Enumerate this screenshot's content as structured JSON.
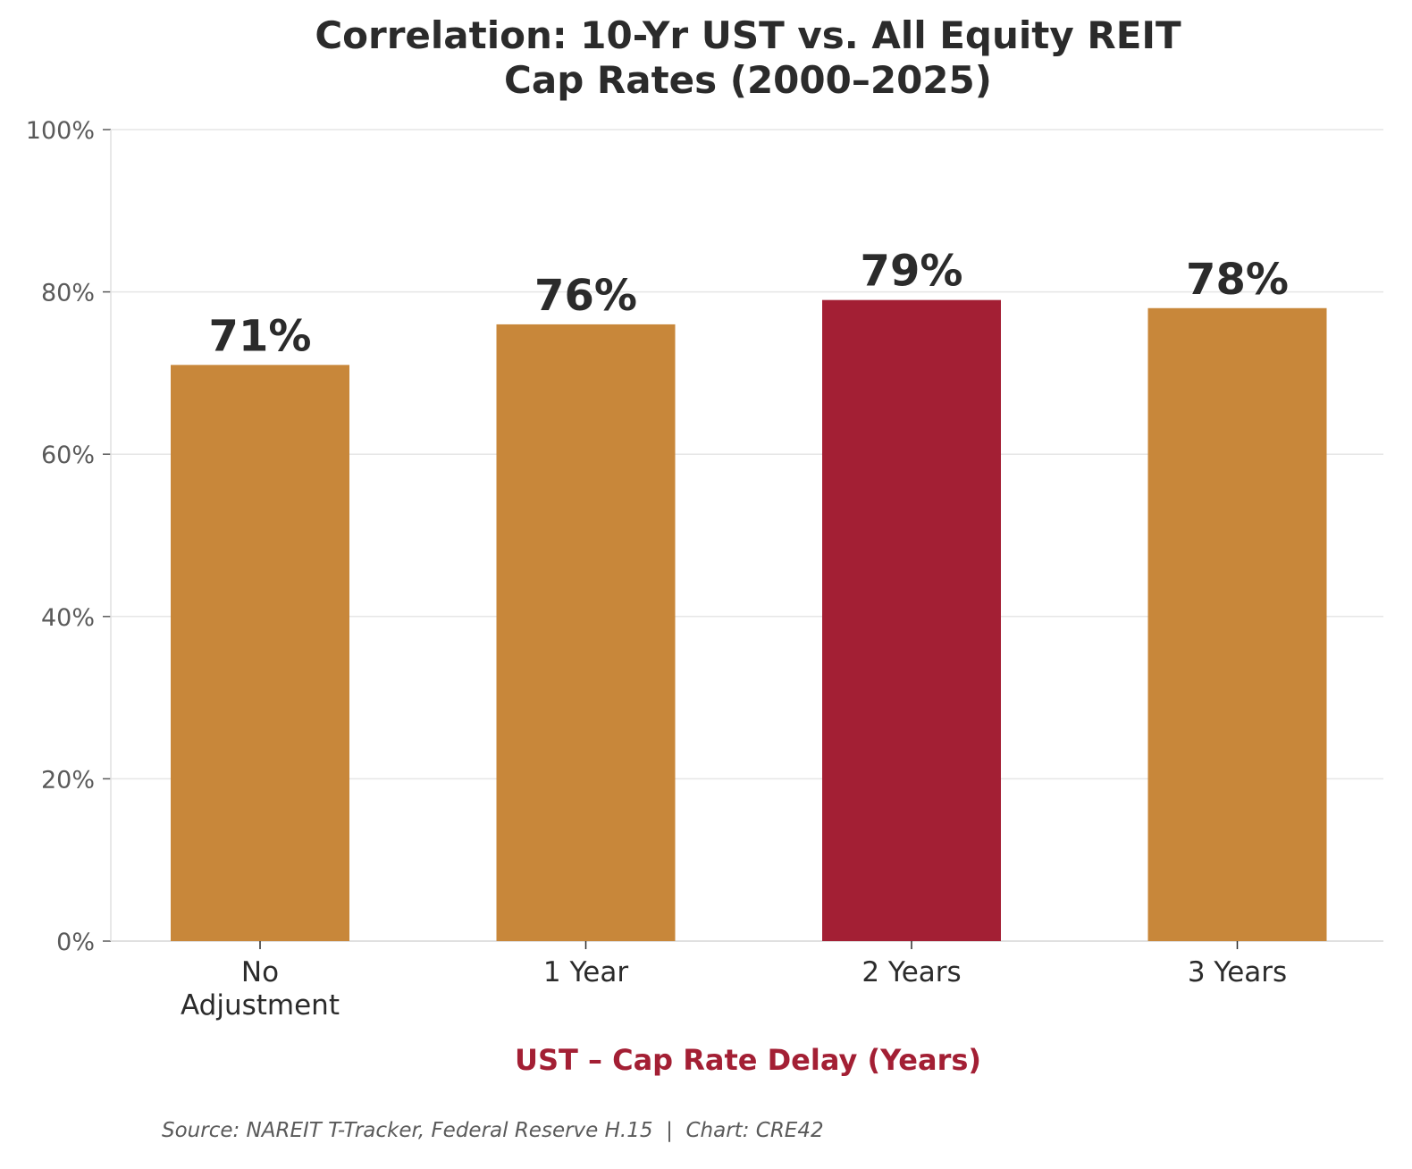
{
  "chart_data": {
    "type": "bar",
    "title_lines": [
      "Correlation: 10-Yr UST vs. All Equity REIT",
      "Cap Rates (2000–2025)"
    ],
    "categories": [
      [
        "No",
        "Adjustment"
      ],
      [
        "1 Year"
      ],
      [
        "2 Years"
      ],
      [
        "3 Years"
      ]
    ],
    "values": [
      71,
      76,
      79,
      78
    ],
    "data_labels": [
      "71%",
      "76%",
      "79%",
      "78%"
    ],
    "highlight_index": 2,
    "xlabel": "UST – Cap Rate Delay (Years)",
    "ylabel": "",
    "ylim": [
      0,
      100
    ],
    "yticks": [
      0,
      20,
      40,
      60,
      80,
      100
    ],
    "ytick_labels": [
      "0%",
      "20%",
      "40%",
      "60%",
      "80%",
      "100%"
    ],
    "grid": true,
    "legend": "none"
  },
  "colors": {
    "bar": "#c8873a",
    "highlight": "#a31f34",
    "xlabel": "#a31f34",
    "grid": "#e6e6e6",
    "axis": "#e0e0e0"
  },
  "source_text": "Source: NAREIT T-Tracker, Federal Reserve H.15  |  Chart: CRE42"
}
